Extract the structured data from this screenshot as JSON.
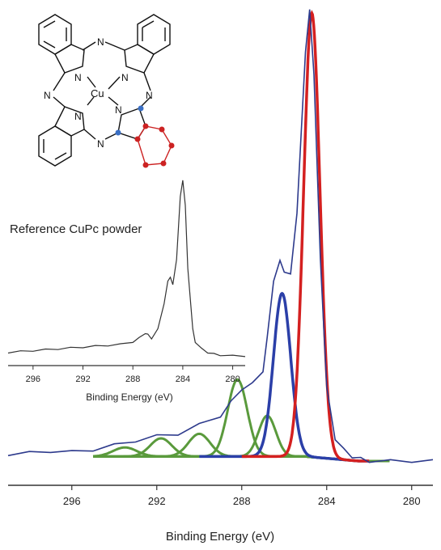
{
  "chart_data": [
    {
      "type": "line",
      "xlabel": "Binding Energy (eV)",
      "ylabel": "",
      "xlim": [
        299,
        279
      ],
      "xticks": [
        296,
        292,
        288,
        284,
        280
      ],
      "x_reversed": true,
      "series": [
        {
          "color": "#2d3a8c",
          "role": "measured",
          "x": [
            299,
            298,
            297,
            296,
            295,
            294,
            293,
            292,
            291,
            290,
            289,
            288.5,
            288,
            287.5,
            287,
            286.8,
            286.5,
            286.2,
            286,
            285.7,
            285.4,
            285,
            284.8,
            284.6,
            284.3,
            284,
            283.6,
            283.2,
            282.8,
            282.4,
            282,
            281,
            280,
            279
          ],
          "y": [
            0.015,
            0.018,
            0.022,
            0.02,
            0.025,
            0.035,
            0.045,
            0.055,
            0.06,
            0.08,
            0.1,
            0.13,
            0.16,
            0.17,
            0.2,
            0.27,
            0.4,
            0.44,
            0.42,
            0.41,
            0.55,
            0.9,
            1.0,
            0.85,
            0.45,
            0.16,
            0.05,
            0.025,
            0.01,
            0.005,
            0.0,
            0.0,
            0.0,
            0.0
          ]
        },
        {
          "color": "#d42020",
          "role": "fit-component",
          "center": 284.7,
          "height": 0.98,
          "width": 0.75
        },
        {
          "color": "#2b3fa8",
          "role": "fit-component",
          "center": 286.1,
          "height": 0.36,
          "width": 0.8
        },
        {
          "color": "#5a9a3c",
          "role": "fit-component",
          "peaks": [
            {
              "center": 286.8,
              "height": 0.09,
              "width": 0.8
            },
            {
              "center": 288.2,
              "height": 0.17,
              "width": 0.9
            },
            {
              "center": 290.0,
              "height": 0.05,
              "width": 1.0
            },
            {
              "center": 291.8,
              "height": 0.04,
              "width": 1.0
            },
            {
              "center": 293.5,
              "height": 0.02,
              "width": 1.1
            }
          ]
        }
      ]
    },
    {
      "type": "line",
      "title": "Reference CuPc powder",
      "xlabel": "Binding Energy (eV)",
      "xlim": [
        298,
        279
      ],
      "xticks": [
        296,
        292,
        288,
        284,
        280
      ],
      "x_reversed": true,
      "series": [
        {
          "color": "#333333",
          "x": [
            298,
            297,
            296,
            295,
            294,
            293,
            292,
            291,
            290,
            289,
            288,
            287.5,
            287,
            286.8,
            286.5,
            286,
            285.5,
            285.2,
            285,
            284.8,
            284.5,
            284.2,
            284,
            283.8,
            283.6,
            283.2,
            283,
            282.5,
            282,
            281.5,
            281,
            280,
            279
          ],
          "y": [
            0.02,
            0.025,
            0.03,
            0.035,
            0.04,
            0.045,
            0.05,
            0.055,
            0.06,
            0.065,
            0.08,
            0.1,
            0.13,
            0.12,
            0.1,
            0.15,
            0.3,
            0.42,
            0.45,
            0.4,
            0.55,
            0.9,
            1.0,
            0.85,
            0.5,
            0.15,
            0.08,
            0.04,
            0.02,
            0.01,
            0.005,
            0.0,
            0.0
          ]
        }
      ]
    }
  ],
  "molecule": {
    "center_atom": "Cu",
    "n_label": "N",
    "highlight_blue": "#3a6fc4",
    "highlight_red": "#cc2222"
  }
}
